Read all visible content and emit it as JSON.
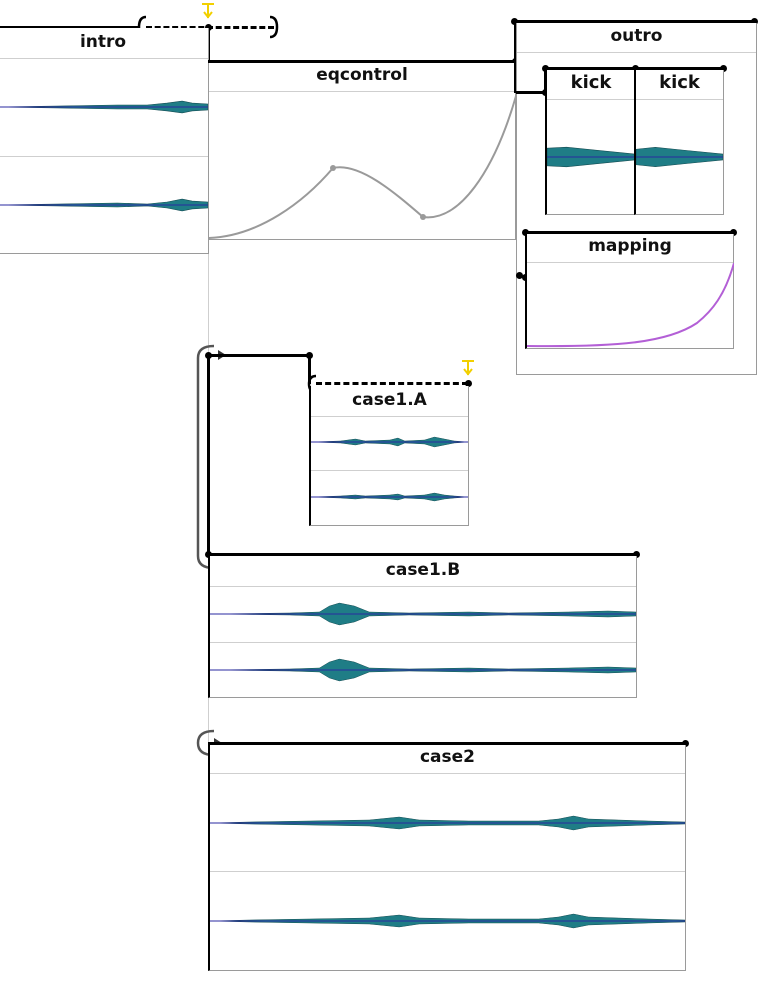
{
  "processes": {
    "intro": {
      "title": "intro"
    },
    "eqcontrol": {
      "title": "eqcontrol"
    },
    "outro": {
      "title": "outro"
    },
    "kick1": {
      "title": "kick"
    },
    "kick2": {
      "title": "kick"
    },
    "mapping": {
      "title": "mapping"
    },
    "case1a": {
      "title": "case1.A"
    },
    "case1b": {
      "title": "case1.B"
    },
    "case2": {
      "title": "case2"
    }
  },
  "icons": {
    "trigger": "trigger-flag-icon",
    "loop": "loop-play-icon",
    "interval_start": "interval-start-bracket-icon",
    "interval_end": "interval-end-bracket-icon"
  },
  "colors": {
    "waveform_fill": "#1f7d86",
    "waveform_line": "#2a2aa0",
    "automation_curve": "#9a9a9a",
    "mapping_curve": "#b35fd6",
    "trigger": "#f2d000"
  }
}
